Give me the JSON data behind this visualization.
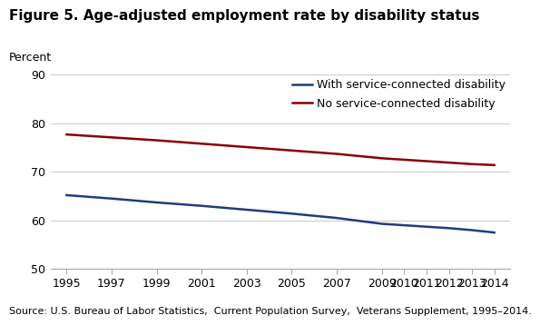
{
  "title": "Figure 5. Age-adjusted employment rate by disability status",
  "ylabel": "Percent",
  "source": "Source: U.S. Bureau of Labor Statistics,  Current Population Survey,  Veterans Supplement, 1995–2014.",
  "ylim": [
    50,
    90
  ],
  "yticks": [
    50,
    60,
    70,
    80,
    90
  ],
  "xticks": [
    1995,
    1997,
    1999,
    2001,
    2003,
    2005,
    2007,
    2009,
    2010,
    2011,
    2012,
    2013,
    2014
  ],
  "xlim": [
    1994.3,
    2014.7
  ],
  "blue_line": {
    "label": "With service-connected disability",
    "color": "#1f3d7a",
    "x": [
      1995,
      1997,
      1999,
      2001,
      2003,
      2005,
      2007,
      2009,
      2010,
      2011,
      2012,
      2013,
      2014
    ],
    "y": [
      65.2,
      64.5,
      63.7,
      63.0,
      62.2,
      61.4,
      60.5,
      59.3,
      59.0,
      58.7,
      58.4,
      58.0,
      57.5
    ]
  },
  "red_line": {
    "label": "No service-connected disability",
    "color": "#8b0000",
    "x": [
      1995,
      1997,
      1999,
      2001,
      2003,
      2005,
      2007,
      2009,
      2010,
      2011,
      2012,
      2013,
      2014
    ],
    "y": [
      77.7,
      77.1,
      76.5,
      75.8,
      75.1,
      74.4,
      73.7,
      72.8,
      72.5,
      72.2,
      71.9,
      71.6,
      71.4
    ]
  },
  "grid_color": "#cccccc",
  "background_color": "#ffffff",
  "linewidth": 1.8,
  "title_fontsize": 11,
  "label_fontsize": 9,
  "tick_fontsize": 9,
  "source_fontsize": 8
}
